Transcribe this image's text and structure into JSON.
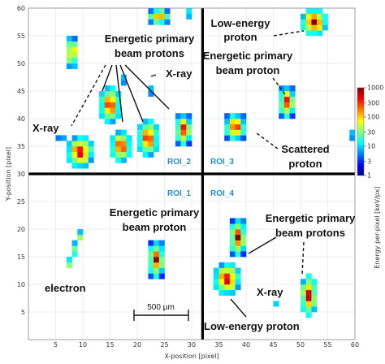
{
  "chart_data": {
    "type": "heatmap",
    "xlabel": "X-position [pixel]",
    "ylabel": "Y-position [pixel]",
    "xlim": [
      0,
      60
    ],
    "ylim": [
      0,
      60
    ],
    "xticks": [
      5,
      10,
      15,
      20,
      25,
      30,
      35,
      40,
      45,
      50,
      55,
      60
    ],
    "yticks": [
      5,
      10,
      15,
      20,
      25,
      30,
      35,
      40,
      45,
      50,
      55,
      60
    ],
    "grid": true,
    "colorbar": {
      "label": "Energy per-pixel [keV/px]",
      "scale": "log",
      "ticks": [
        "1",
        "3",
        "10",
        "30",
        "100",
        "300",
        "1000"
      ]
    },
    "dividers": {
      "x": 32,
      "y": 30
    },
    "roi_labels": [
      "ROI_1",
      "ROI_2",
      "ROI_3",
      "ROI_4"
    ],
    "scale_bar": "500 µm",
    "annotations": {
      "energetic_top": [
        "Energetic primary",
        "beam protons"
      ],
      "xray_top_left": "X-ray",
      "xray_top_mid": "X-ray",
      "low_energy_top": [
        "Low-energy",
        "proton"
      ],
      "energetic_top_right": [
        "Energetic primary",
        "beam proton"
      ],
      "scattered": [
        "Scattered",
        "proton"
      ],
      "energetic_bottom_left": [
        "Energetic primary",
        "beam proton"
      ],
      "electron": "electron",
      "energetic_bottom_right": [
        "Energetic primary",
        "beam protons"
      ],
      "xray_bottom": "X-ray",
      "low_energy_bottom": "Low-energy proton"
    },
    "clusters": [
      {
        "id": "c1",
        "x": 8,
        "y": 52,
        "w": 2,
        "h": 6,
        "peak": 2.7,
        "shape": "blob"
      },
      {
        "id": "c2",
        "x": 24,
        "y": 58,
        "w": 4,
        "h": 3,
        "peak": 2.6,
        "shape": "blob"
      },
      {
        "id": "c3",
        "x": 29,
        "y": 59,
        "w": 1,
        "h": 2,
        "peak": 1.4,
        "shape": "blob"
      },
      {
        "id": "c4",
        "x": 17,
        "y": 47,
        "w": 1,
        "h": 2,
        "peak": 1.2,
        "shape": "blob"
      },
      {
        "id": "c5",
        "x": 15,
        "y": 42,
        "w": 4,
        "h": 7,
        "peak": 2.8,
        "shape": "blob"
      },
      {
        "id": "c6",
        "x": 22,
        "y": 45,
        "w": 1,
        "h": 2,
        "peak": 1.2,
        "shape": "blob"
      },
      {
        "id": "c7",
        "x": 28,
        "y": 38,
        "w": 3,
        "h": 6,
        "peak": 2.8,
        "shape": "blob"
      },
      {
        "id": "c8",
        "x": 6,
        "y": 36,
        "w": 2,
        "h": 1,
        "peak": 1.1,
        "shape": "blob"
      },
      {
        "id": "c9",
        "x": 9,
        "y": 34,
        "w": 5,
        "h": 6,
        "peak": 2.9,
        "shape": "blob"
      },
      {
        "id": "c10",
        "x": 17,
        "y": 35,
        "w": 4,
        "h": 6,
        "peak": 2.8,
        "shape": "blob"
      },
      {
        "id": "c11",
        "x": 22,
        "y": 36,
        "w": 4,
        "h": 7,
        "peak": 2.8,
        "shape": "blob"
      },
      {
        "id": "c12",
        "x": 52,
        "y": 57,
        "w": 5,
        "h": 5,
        "peak": 3.0,
        "shape": "blob"
      },
      {
        "id": "c13",
        "x": 47,
        "y": 43,
        "w": 3,
        "h": 6,
        "peak": 2.8,
        "shape": "blob"
      },
      {
        "id": "c14",
        "x": 38,
        "y": 38,
        "w": 4,
        "h": 5,
        "peak": 2.8,
        "shape": "blob"
      },
      {
        "id": "c15",
        "x": 59,
        "y": 37,
        "w": 1,
        "h": 2,
        "peak": 1.2,
        "shape": "blob"
      },
      {
        "id": "c16",
        "x": 8,
        "y": 16,
        "w": 3,
        "h": 7,
        "peak": 1.6,
        "shape": "diag"
      },
      {
        "id": "c17",
        "x": 23,
        "y": 14,
        "w": 3,
        "h": 7,
        "peak": 2.8,
        "shape": "blob"
      },
      {
        "id": "c18",
        "x": 38,
        "y": 18,
        "w": 3,
        "h": 7,
        "peak": 2.9,
        "shape": "blob"
      },
      {
        "id": "c19",
        "x": 36,
        "y": 11,
        "w": 5,
        "h": 6,
        "peak": 2.9,
        "shape": "blob"
      },
      {
        "id": "c20",
        "x": 51,
        "y": 8,
        "w": 3,
        "h": 8,
        "peak": 2.9,
        "shape": "blob"
      },
      {
        "id": "c21",
        "x": 45,
        "y": 6,
        "w": 1,
        "h": 1,
        "peak": 1.0,
        "shape": "blob"
      }
    ]
  }
}
